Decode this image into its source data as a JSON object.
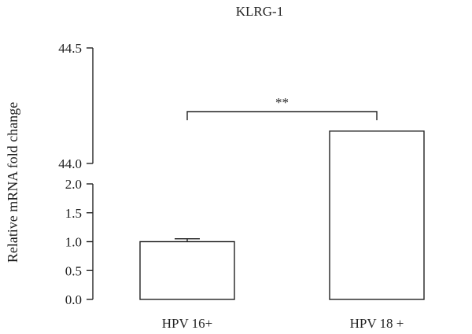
{
  "chart_data": {
    "type": "bar",
    "title": "KLRG-1",
    "ylabel": "Relative mRNA fold change",
    "xlabel": "",
    "categories": [
      "HPV 16+",
      "HPV 18 +"
    ],
    "values": [
      1.0,
      44.14
    ],
    "errors": [
      0.05,
      0.0
    ],
    "y_axis_broken": true,
    "y_lower_range": [
      0.0,
      2.0
    ],
    "y_lower_ticks": [
      "0.0",
      "0.5",
      "1.0",
      "1.5",
      "2.0"
    ],
    "y_upper_range": [
      44.0,
      44.5
    ],
    "y_upper_ticks": [
      "44.0",
      "44.5"
    ],
    "significance": {
      "between": [
        0,
        1
      ],
      "label": "**"
    },
    "colors": {
      "bar_fill": "#ffffff",
      "stroke": "#222222"
    }
  }
}
